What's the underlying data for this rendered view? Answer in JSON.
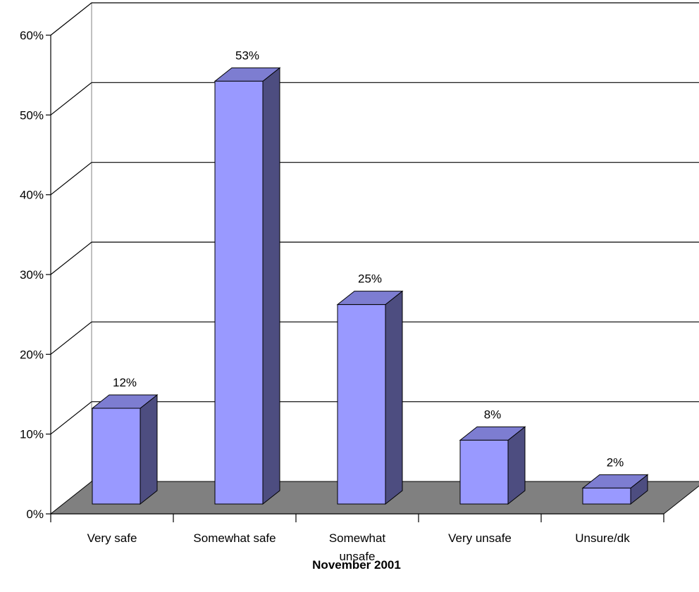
{
  "chart_data": {
    "type": "bar",
    "title": "",
    "xlabel": "November 2001",
    "ylabel": "",
    "categories": [
      "Very safe",
      "Somewhat safe",
      "Somewhat unsafe",
      "Very unsafe",
      "Unsure/dk"
    ],
    "values": [
      12,
      53,
      25,
      8,
      2
    ],
    "data_labels": [
      "12%",
      "53%",
      "25%",
      "8%",
      "2%"
    ],
    "ylim": [
      0,
      60
    ],
    "yticks": [
      0,
      10,
      20,
      30,
      40,
      50,
      60
    ],
    "ytick_labels": [
      "0%",
      "10%",
      "20%",
      "30%",
      "40%",
      "50%",
      "60%"
    ],
    "grid": true,
    "legend": "none",
    "colors": {
      "bar_front": "#9999ff",
      "bar_side": "#4d4d80",
      "bar_top": "#7d7dd1",
      "floor": "#808080",
      "grid": "#000000"
    }
  }
}
